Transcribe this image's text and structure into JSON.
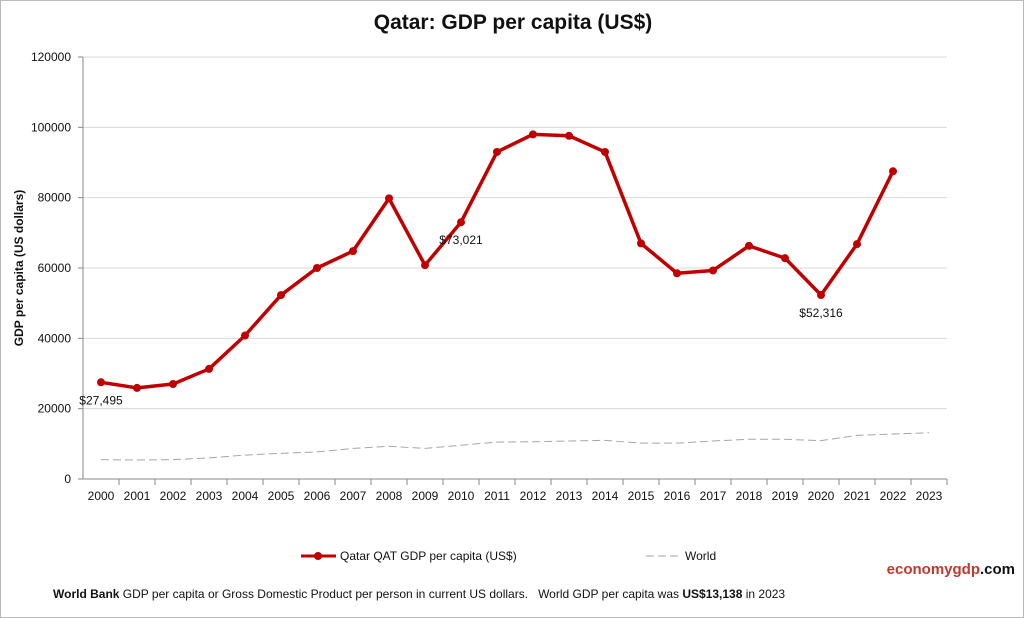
{
  "chart_data": {
    "type": "line",
    "title": "Qatar: GDP per capita (US$)",
    "y_label": "GDP per capita (US dollars)",
    "categories": [
      "2000",
      "2001",
      "2002",
      "2003",
      "2004",
      "2005",
      "2006",
      "2007",
      "2008",
      "2009",
      "2010",
      "2011",
      "2012",
      "2013",
      "2014",
      "2015",
      "2016",
      "2017",
      "2018",
      "2019",
      "2020",
      "2021",
      "2022",
      "2023"
    ],
    "series": [
      {
        "name": "Qatar QAT GDP per capita (US$)",
        "color": "#c00000",
        "values": [
          27495,
          25900,
          27000,
          31300,
          40800,
          52300,
          60000,
          64800,
          79800,
          60800,
          73021,
          93000,
          98000,
          97600,
          93000,
          67000,
          58500,
          59300,
          66300,
          62800,
          52316,
          66800,
          87500,
          null
        ],
        "value_labels": [
          "$27,495",
          null,
          null,
          null,
          null,
          null,
          null,
          null,
          null,
          null,
          "$73,021",
          null,
          null,
          null,
          null,
          null,
          null,
          null,
          null,
          null,
          "$52,316",
          null,
          null,
          null
        ]
      },
      {
        "name": "World",
        "color": "#a6a6a6",
        "dashed": true,
        "values": [
          5500,
          5400,
          5500,
          6000,
          6800,
          7300,
          7700,
          8700,
          9300,
          8700,
          9600,
          10500,
          10600,
          10800,
          11000,
          10200,
          10200,
          10800,
          11300,
          11300,
          10900,
          12400,
          12800,
          13138
        ]
      }
    ],
    "ylim": [
      0,
      120000
    ],
    "yticks": [
      0,
      20000,
      40000,
      60000,
      80000,
      100000,
      120000
    ],
    "grid": true,
    "footer": {
      "source": "World Bank",
      "text": " GDP per capita or Gross Domestic Product per person in current US dollars.   World GDP per capita was ",
      "highlight": "US$13,138",
      "end": " in 2023"
    },
    "brand": {
      "name": "economygdp",
      "suffix": ".com"
    }
  }
}
